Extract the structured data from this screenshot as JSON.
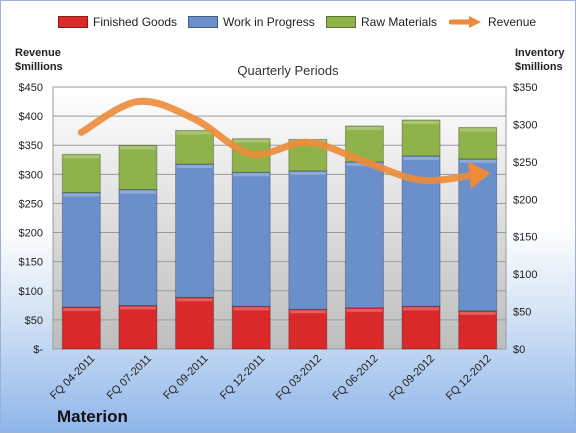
{
  "chart_data": {
    "type": "bar",
    "stacked": true,
    "title": "Quarterly Periods",
    "company": "Materion",
    "left_axis": {
      "title_line1": "Revenue",
      "title_line2": "$millions",
      "range": [
        0,
        450
      ],
      "ticks": [
        "$-",
        "$50",
        "$100",
        "$150",
        "$200",
        "$250",
        "$300",
        "$350",
        "$400",
        "$450"
      ]
    },
    "right_axis": {
      "title_line1": "Inventory",
      "title_line2": "$millions",
      "range": [
        0,
        350
      ],
      "ticks": [
        "$0",
        "$50",
        "$100",
        "$150",
        "$200",
        "$250",
        "$300",
        "$350"
      ]
    },
    "categories": [
      "FQ 04-2011",
      "FQ 07-2011",
      "FQ 09-2011",
      "FQ 12-2011",
      "FQ 03-2012",
      "FQ 06-2012",
      "FQ 09-2012",
      "FQ 12-2012"
    ],
    "series": [
      {
        "name": "Finished Goods",
        "axis": "right",
        "color": "#d9292a",
        "values": [
          56,
          58,
          69,
          57,
          53,
          55,
          57,
          51
        ]
      },
      {
        "name": "Work in Progress",
        "axis": "right",
        "color": "#6b8fca",
        "values": [
          153,
          155,
          178,
          179,
          185,
          195,
          201,
          203
        ]
      },
      {
        "name": "Raw Materials",
        "axis": "right",
        "color": "#8fb24a",
        "values": [
          51,
          59,
          45,
          45,
          42,
          48,
          48,
          42
        ]
      },
      {
        "name": "Revenue",
        "axis": "left",
        "type": "line",
        "color": "#ed8b3a",
        "values": [
          372,
          425,
          395,
          335,
          355,
          322,
          290,
          300
        ]
      }
    ],
    "legend_position": "top",
    "grid": true
  }
}
